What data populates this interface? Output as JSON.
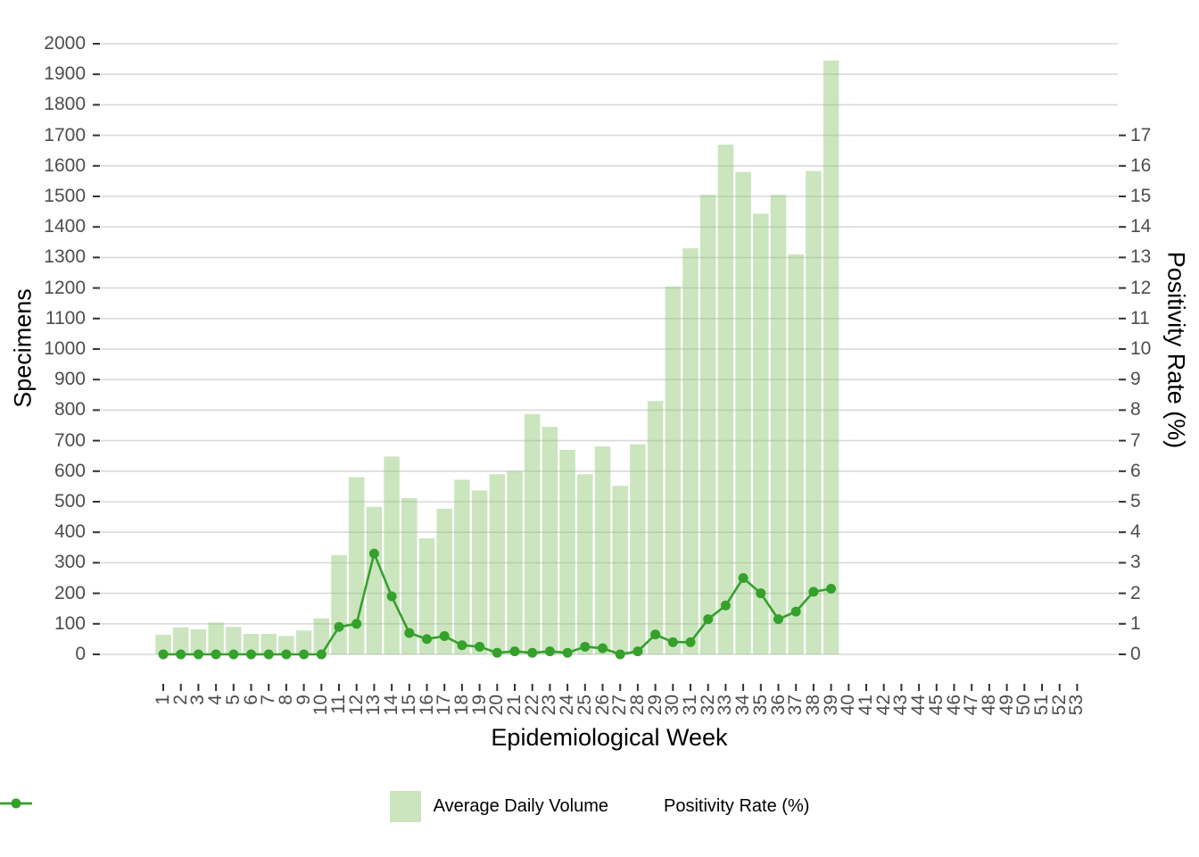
{
  "chart_data": {
    "type": "bar",
    "title": "",
    "xlabel": "Epidemiological Week",
    "ylabel_left": "Specimens",
    "ylabel_right": "Positivity Rate (%)",
    "categories": [
      1,
      2,
      3,
      4,
      5,
      6,
      7,
      8,
      9,
      10,
      11,
      12,
      13,
      14,
      15,
      16,
      17,
      18,
      19,
      20,
      21,
      22,
      23,
      24,
      25,
      26,
      27,
      28,
      29,
      30,
      31,
      32,
      33,
      34,
      35,
      36,
      37,
      38,
      39,
      40,
      41,
      42,
      43,
      44,
      45,
      46,
      47,
      48,
      49,
      50,
      51,
      52,
      53
    ],
    "series": [
      {
        "name": "Average Daily Volume",
        "type": "bar",
        "axis": "left",
        "values": [
          64,
          88,
          82,
          104,
          90,
          67,
          67,
          60,
          78,
          118,
          325,
          580,
          483,
          648,
          512,
          380,
          477,
          572,
          537,
          590,
          600,
          787,
          745,
          670,
          590,
          681,
          552,
          688,
          830,
          1205,
          1330,
          1505,
          1670,
          1580,
          1443,
          1505,
          1310,
          1583,
          1945,
          null,
          null,
          null,
          null,
          null,
          null,
          null,
          null,
          null,
          null,
          null,
          null,
          null,
          null
        ]
      },
      {
        "name": "Positivity Rate (%)",
        "type": "line",
        "axis": "right",
        "values": [
          0,
          0,
          0,
          0,
          0,
          0,
          0,
          0,
          0,
          0,
          0.9,
          1.0,
          3.3,
          1.9,
          0.7,
          0.5,
          0.6,
          0.3,
          0.25,
          0.05,
          0.1,
          0.05,
          0.1,
          0.05,
          0.25,
          0.2,
          0.0,
          0.1,
          0.65,
          0.4,
          0.4,
          1.15,
          1.6,
          2.5,
          2.0,
          1.15,
          1.4,
          2.05,
          2.15,
          null,
          null,
          null,
          null,
          null,
          null,
          null,
          null,
          null,
          null,
          null,
          null,
          null,
          null
        ]
      }
    ],
    "ylim_left": [
      0,
      2000
    ],
    "ylim_right": [
      0,
      17
    ],
    "y_left_ticks": [
      0,
      100,
      200,
      300,
      400,
      500,
      600,
      700,
      800,
      900,
      1000,
      1100,
      1200,
      1300,
      1400,
      1500,
      1600,
      1700,
      1800,
      1900,
      2000
    ],
    "y_right_ticks": [
      0,
      1,
      2,
      3,
      4,
      5,
      6,
      7,
      8,
      9,
      10,
      11,
      12,
      13,
      14,
      15,
      16,
      17
    ],
    "x_ticks": [
      1,
      2,
      3,
      4,
      5,
      6,
      7,
      8,
      9,
      10,
      11,
      12,
      13,
      14,
      15,
      16,
      17,
      18,
      19,
      20,
      21,
      22,
      23,
      24,
      25,
      26,
      27,
      28,
      29,
      30,
      31,
      32,
      33,
      34,
      35,
      36,
      37,
      38,
      39,
      40,
      41,
      42,
      43,
      44,
      45,
      46,
      47,
      48,
      49,
      50,
      51,
      52,
      53
    ],
    "grid": "horizontal-only",
    "legend_position": "bottom"
  },
  "legend": {
    "items": [
      {
        "label": "Average Daily Volume",
        "marker": "square"
      },
      {
        "label": "Positivity Rate (%)",
        "marker": "line-point"
      }
    ]
  },
  "colors": {
    "bar_fill": "#CBE4BE",
    "bar_fill_base": "#8BC571",
    "bar_fill_opacity": "0.45",
    "line": "#35A02C",
    "gridline": "#D9D9D9",
    "tick_mark": "#333333",
    "tick_label": "#4D4D4D",
    "axis_title": "#000000",
    "background": "#FFFFFF"
  }
}
